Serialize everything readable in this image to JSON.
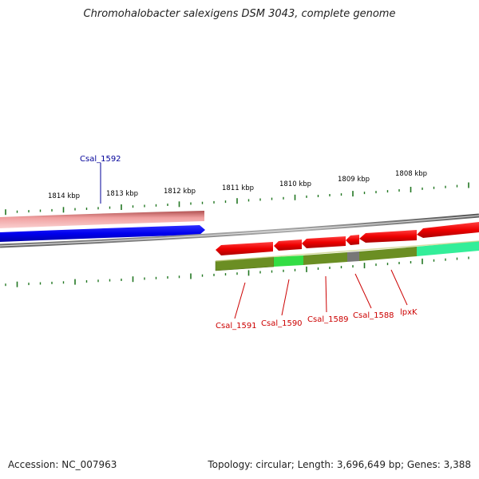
{
  "title": "Chromohalobacter salexigens DSM 3043, complete genome",
  "footer": {
    "accession": "Accession: NC_007963",
    "summary": "Topology: circular; Length: 3,696,649 bp; Genes: 3,388"
  },
  "colors": {
    "forward_gene": "#0000ee",
    "forward_label": "#000099",
    "reverse_gene": "#ee0000",
    "reverse_label": "#cc0000",
    "tick": "#227722",
    "backbone": "#888888",
    "pink_band": "#e88888",
    "olive": "#6b8e23",
    "green": "#33dd44",
    "teal": "#33ee99",
    "grey_segment": "#777777"
  },
  "tick_labels": [
    "1814 kbp",
    "1813 kbp",
    "1812 kbp",
    "1811 kbp",
    "1810 kbp",
    "1809 kbp",
    "1808 kbp"
  ],
  "forward_genes": [
    {
      "label": "Csal_1592"
    }
  ],
  "reverse_genes": [
    {
      "label": "Csal_1591"
    },
    {
      "label": "Csal_1590"
    },
    {
      "label": "Csal_1589"
    },
    {
      "label": "Csal_1588"
    },
    {
      "label": "lpxK"
    }
  ]
}
